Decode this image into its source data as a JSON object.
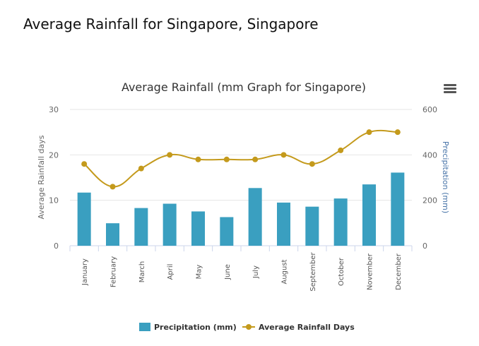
{
  "page": {
    "title": "Average Rainfall for Singapore, Singapore"
  },
  "menu": {
    "icon": "hamburger-menu-icon"
  },
  "colors": {
    "bar": "#3a9fc0",
    "line": "#c49a1c",
    "grid": "#e6e6e6",
    "axis_text": "#666666"
  },
  "chart_data": {
    "type": "bar",
    "title": "Average Rainfall (mm Graph for Singapore)",
    "categories": [
      "January",
      "February",
      "March",
      "April",
      "May",
      "June",
      "July",
      "August",
      "September",
      "October",
      "November",
      "December"
    ],
    "y_left": {
      "label": "Average Rainfall days",
      "range": [
        0,
        30
      ],
      "ticks": [
        "0",
        "10",
        "20",
        "30"
      ]
    },
    "y_right": {
      "label": "Precipitation (mm)",
      "range": [
        0,
        600
      ],
      "ticks": [
        "0",
        "200",
        "400",
        "600"
      ]
    },
    "series": [
      {
        "name": "Precipitation (mm)",
        "type": "bar",
        "axis": "right",
        "values": [
          234,
          99,
          166,
          185,
          151,
          126,
          254,
          190,
          172,
          208,
          270,
          322
        ]
      },
      {
        "name": "Average Rainfall Days",
        "type": "line",
        "axis": "left",
        "values": [
          18,
          13,
          17,
          20,
          19,
          19,
          19,
          20,
          18,
          21,
          25,
          25
        ]
      }
    ],
    "legend": "bottom-center",
    "grid": true
  }
}
